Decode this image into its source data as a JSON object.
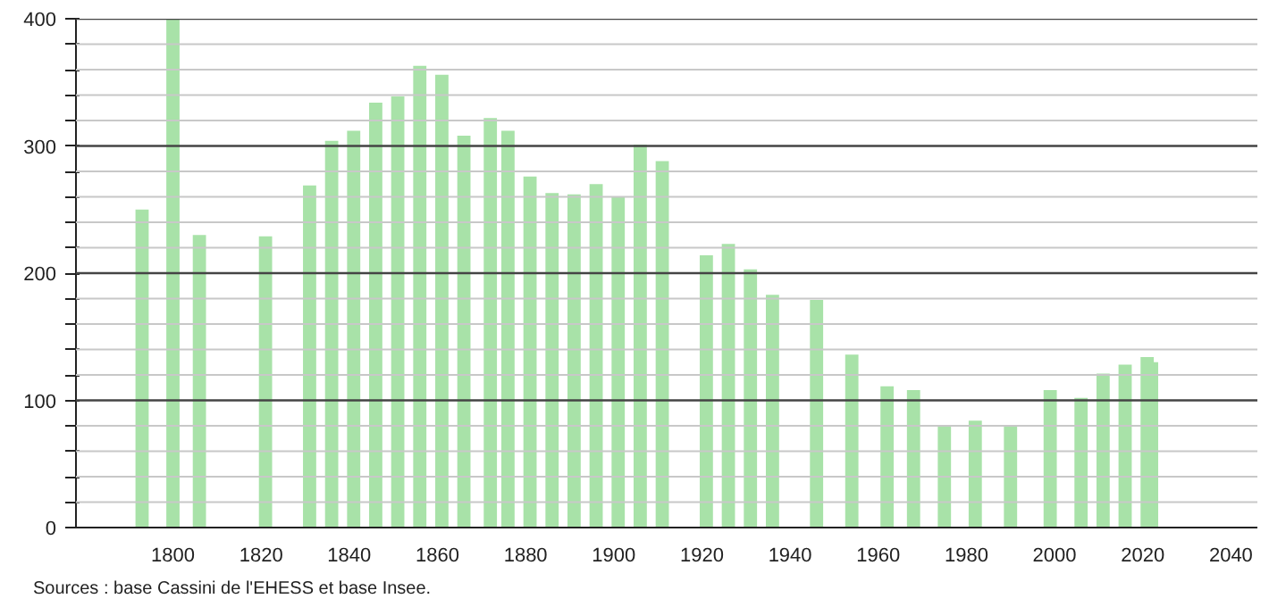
{
  "chart_data": {
    "type": "bar",
    "x": [
      1793,
      1800,
      1806,
      1821,
      1831,
      1836,
      1841,
      1846,
      1851,
      1856,
      1861,
      1866,
      1872,
      1876,
      1881,
      1886,
      1891,
      1896,
      1901,
      1906,
      1911,
      1921,
      1926,
      1931,
      1936,
      1946,
      1954,
      1962,
      1968,
      1975,
      1982,
      1990,
      1999,
      2006,
      2011,
      2016,
      2021,
      2022
    ],
    "values": [
      250,
      400,
      230,
      229,
      269,
      304,
      312,
      334,
      339,
      363,
      356,
      308,
      322,
      312,
      276,
      263,
      262,
      270,
      260,
      301,
      288,
      214,
      223,
      203,
      183,
      179,
      136,
      111,
      108,
      80,
      84,
      80,
      108,
      102,
      121,
      128,
      134,
      130
    ],
    "color": "#a8e2a8",
    "xlim": [
      1778,
      2046
    ],
    "ylim": [
      0,
      400
    ],
    "xticks": [
      1800,
      1820,
      1840,
      1860,
      1880,
      1900,
      1920,
      1940,
      1960,
      1980,
      2000,
      2020,
      2040
    ],
    "yticks": [
      0,
      {
        "value": 20,
        "label": null
      },
      {
        "value": 40,
        "label": null
      },
      {
        "value": 60,
        "label": null
      },
      {
        "value": 80,
        "label": null
      },
      100,
      {
        "value": 120,
        "label": null
      },
      {
        "value": 140,
        "label": null
      },
      {
        "value": 160,
        "label": null
      },
      {
        "value": 180,
        "label": null
      },
      200,
      {
        "value": 220,
        "label": null
      },
      {
        "value": 240,
        "label": null
      },
      {
        "value": 260,
        "label": null
      },
      {
        "value": 280,
        "label": null
      },
      300,
      {
        "value": 320,
        "label": null
      },
      {
        "value": 340,
        "label": null
      },
      {
        "value": 360,
        "label": null
      },
      {
        "value": 380,
        "label": null
      },
      400
    ],
    "grid": "y",
    "annotations": [
      "Sources : base Cassini de l'EHESS et base Insee."
    ]
  }
}
